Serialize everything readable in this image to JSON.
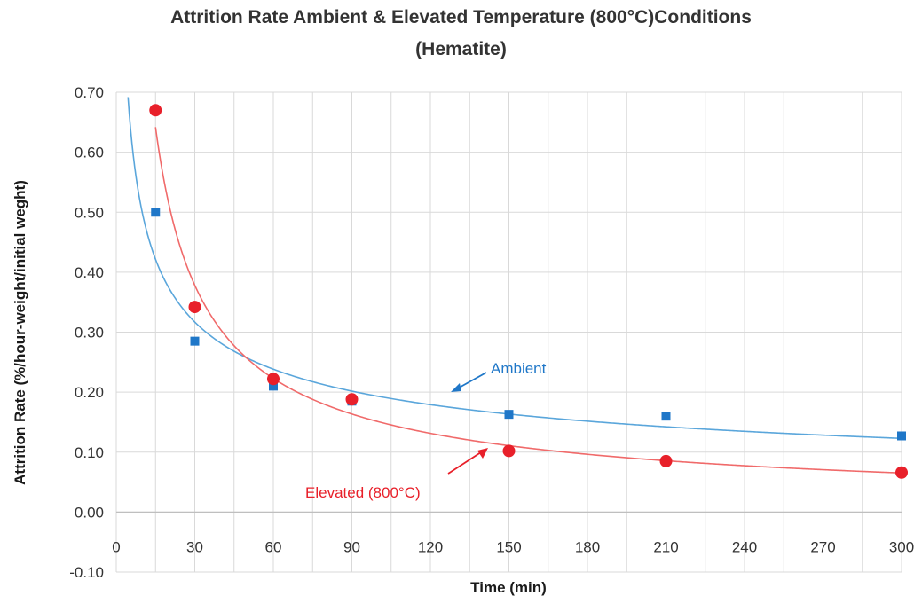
{
  "chart_data": {
    "type": "scatter",
    "title": "Attrition Rate Ambient & Elevated Temperature (800°C)Conditions",
    "subtitle": "(Hematite)",
    "xlabel": "Time (min)",
    "ylabel": "Attrition Rate (%/hour-weight/initial weght)",
    "xlim": [
      0,
      300
    ],
    "ylim": [
      -0.1,
      0.7
    ],
    "x_ticks": [
      "0",
      "30",
      "60",
      "90",
      "120",
      "150",
      "180",
      "210",
      "240",
      "270",
      "300"
    ],
    "y_ticks": [
      "0.70",
      "0.60",
      "0.50",
      "0.40",
      "0.30",
      "0.20",
      "0.10",
      "0.00",
      "-0.10"
    ],
    "grid": true,
    "series": [
      {
        "name": "Ambient",
        "color": "#1f77c8",
        "marker": "square",
        "x": [
          15,
          30,
          60,
          90,
          150,
          210,
          300
        ],
        "y": [
          0.5,
          0.285,
          0.21,
          0.185,
          0.163,
          0.16,
          0.127
        ],
        "trendline": "power"
      },
      {
        "name": "Elevated (800°C)",
        "color": "#e8202a",
        "marker": "circle",
        "x": [
          15,
          30,
          60,
          90,
          150,
          210,
          300
        ],
        "y": [
          0.67,
          0.342,
          0.222,
          0.188,
          0.102,
          0.085,
          0.066
        ],
        "trendline": "power"
      }
    ],
    "annotations": [
      "Ambient",
      "Elevated (800°C)"
    ]
  }
}
